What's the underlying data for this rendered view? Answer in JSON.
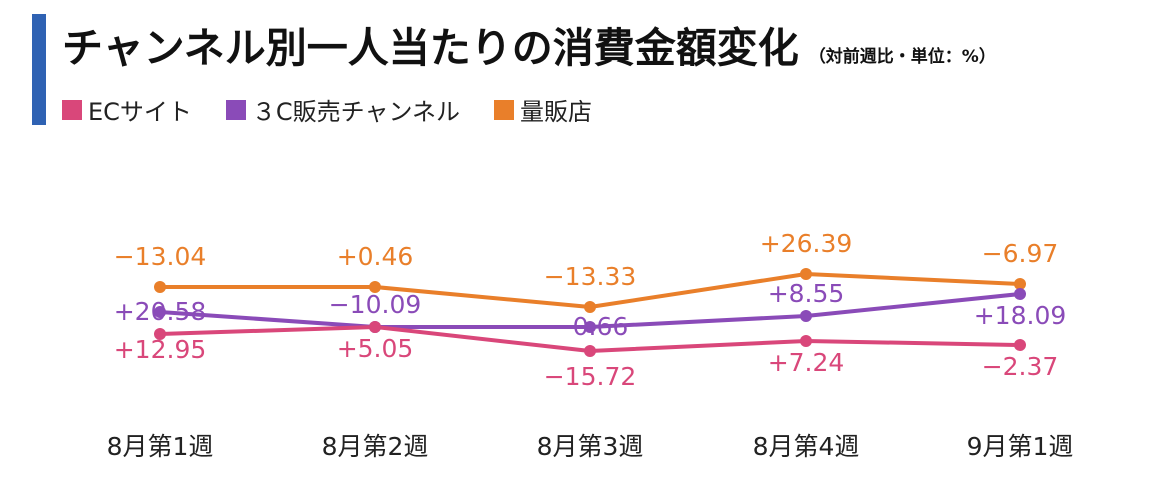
{
  "header": {
    "title": "チャンネル別一人当たりの消費金額変化",
    "subtitle": "（対前週比・単位：%）"
  },
  "legend": [
    {
      "label": "ECサイト",
      "color": "#d9477a"
    },
    {
      "label": "３C販売チャンネル",
      "color": "#8a4bb8"
    },
    {
      "label": "量販店",
      "color": "#e97f2a"
    }
  ],
  "chart_data": {
    "type": "line",
    "categories": [
      "8月第1週",
      "8月第2週",
      "8月第3週",
      "8月第4週",
      "9月第1週"
    ],
    "series": [
      {
        "name": "ECサイト",
        "values": [
          12.95,
          5.05,
          -15.72,
          7.24,
          -2.37
        ],
        "labels": [
          "+12.95",
          "+5.05",
          "−15.72",
          "+7.24",
          "−2.37"
        ],
        "color": "#d9477a"
      },
      {
        "name": "３C販売チャンネル",
        "values": [
          20.58,
          -10.09,
          -0.66,
          8.55,
          18.09
        ],
        "labels": [
          "+20.58",
          "−10.09",
          "−0.66",
          "+8.55",
          "+18.09"
        ],
        "color": "#8a4bb8"
      },
      {
        "name": "量販店",
        "values": [
          -13.04,
          0.46,
          -13.33,
          26.39,
          -6.97
        ],
        "labels": [
          "−13.04",
          "+0.46",
          "−13.33",
          "+26.39",
          "−6.97"
        ],
        "color": "#e97f2a"
      }
    ],
    "xlabel": "",
    "ylabel": "",
    "grid": false
  }
}
